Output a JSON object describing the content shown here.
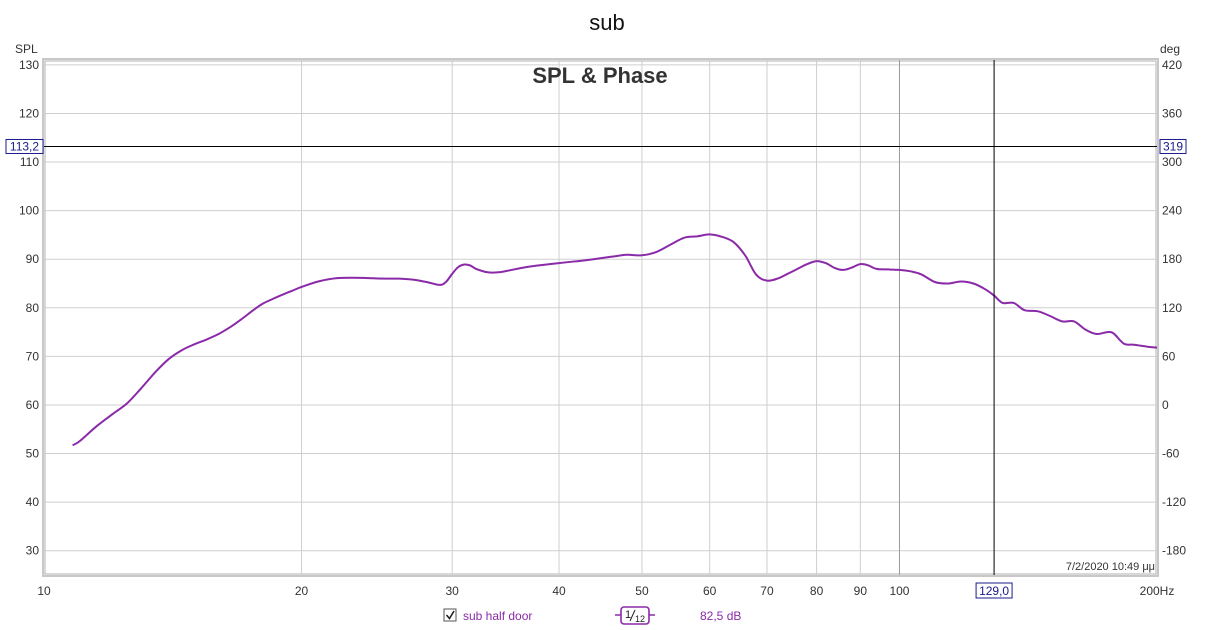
{
  "chart_data": {
    "type": "line",
    "title": "sub",
    "plot_title": "SPL & Phase",
    "ylabel_left": "SPL",
    "ylabel_right": "deg",
    "x_unit": "Hz",
    "x_scale": "log",
    "xlim": [
      10,
      200
    ],
    "ylim_left": [
      25,
      131
    ],
    "ylim_right": [
      -210,
      426
    ],
    "grid": true,
    "x_ticks": [
      10,
      20,
      30,
      40,
      50,
      60,
      70,
      80,
      90,
      100,
      200
    ],
    "x_tick_labels": [
      "10",
      "20",
      "30",
      "40",
      "50",
      "60",
      "70",
      "80",
      "90",
      "100",
      "200Hz"
    ],
    "y_ticks_left": [
      30,
      40,
      50,
      60,
      70,
      80,
      90,
      100,
      110,
      120,
      130
    ],
    "y_tick_labels_left": [
      "30",
      "40",
      "50",
      "60",
      "70",
      "80",
      "90",
      "100",
      "110",
      "120",
      "130"
    ],
    "y_ticks_right": [
      -180,
      -120,
      -60,
      0,
      60,
      120,
      180,
      240,
      300,
      360,
      420
    ],
    "y_tick_labels_right": [
      "-180",
      "-120",
      "-60",
      "0",
      "60",
      "120",
      "180",
      "240",
      "300",
      "360",
      "420"
    ],
    "cursor": {
      "x": 129.0,
      "x_label": "129,0",
      "y_left": 113.2,
      "y_left_label": "113,2",
      "y_right_label": "319"
    },
    "timestamp": "7/2/2020 10:49 μμ",
    "series": [
      {
        "name": "sub half door",
        "color": "#8a2aa8",
        "points": [
          [
            10.8,
            51.7
          ],
          [
            11.0,
            52.5
          ],
          [
            11.5,
            55.5
          ],
          [
            12.0,
            58.0
          ],
          [
            12.5,
            60.3
          ],
          [
            13.0,
            63.5
          ],
          [
            13.5,
            66.8
          ],
          [
            14.0,
            69.5
          ],
          [
            14.5,
            71.3
          ],
          [
            15.0,
            72.5
          ],
          [
            15.5,
            73.5
          ],
          [
            16.0,
            74.6
          ],
          [
            16.5,
            76.0
          ],
          [
            17.0,
            77.6
          ],
          [
            17.5,
            79.3
          ],
          [
            18.0,
            80.8
          ],
          [
            18.5,
            81.8
          ],
          [
            19.0,
            82.7
          ],
          [
            19.5,
            83.5
          ],
          [
            20.0,
            84.3
          ],
          [
            21.0,
            85.5
          ],
          [
            22.0,
            86.1
          ],
          [
            23.0,
            86.2
          ],
          [
            24.0,
            86.1
          ],
          [
            25.0,
            86.0
          ],
          [
            26.0,
            86.0
          ],
          [
            27.0,
            85.8
          ],
          [
            28.0,
            85.3
          ],
          [
            29.0,
            84.7
          ],
          [
            29.5,
            85.3
          ],
          [
            30.0,
            87.0
          ],
          [
            30.5,
            88.4
          ],
          [
            31.0,
            88.9
          ],
          [
            31.5,
            88.7
          ],
          [
            32.0,
            88.0
          ],
          [
            33.0,
            87.3
          ],
          [
            34.0,
            87.3
          ],
          [
            35.0,
            87.7
          ],
          [
            37.0,
            88.5
          ],
          [
            40.0,
            89.2
          ],
          [
            43.0,
            89.8
          ],
          [
            46.0,
            90.5
          ],
          [
            48.0,
            90.9
          ],
          [
            50.0,
            90.8
          ],
          [
            52.0,
            91.5
          ],
          [
            54.0,
            93.0
          ],
          [
            56.0,
            94.4
          ],
          [
            58.0,
            94.7
          ],
          [
            60.0,
            95.1
          ],
          [
            62.0,
            94.6
          ],
          [
            64.0,
            93.5
          ],
          [
            66.0,
            90.8
          ],
          [
            68.0,
            86.8
          ],
          [
            70.0,
            85.6
          ],
          [
            72.0,
            86.0
          ],
          [
            74.0,
            87.0
          ],
          [
            76.0,
            88.0
          ],
          [
            78.0,
            89.0
          ],
          [
            80.0,
            89.6
          ],
          [
            82.0,
            89.2
          ],
          [
            84.0,
            88.2
          ],
          [
            86.0,
            87.8
          ],
          [
            88.0,
            88.3
          ],
          [
            90.0,
            89.0
          ],
          [
            92.0,
            88.7
          ],
          [
            94.0,
            88.0
          ],
          [
            97.0,
            87.9
          ],
          [
            100.0,
            87.8
          ],
          [
            103.0,
            87.5
          ],
          [
            106.0,
            86.9
          ],
          [
            110.0,
            85.3
          ],
          [
            114.0,
            85.0
          ],
          [
            118.0,
            85.4
          ],
          [
            122.0,
            85.0
          ],
          [
            126.0,
            83.8
          ],
          [
            129.0,
            82.5
          ],
          [
            132.0,
            81.0
          ],
          [
            136.0,
            81.0
          ],
          [
            140.0,
            79.5
          ],
          [
            145.0,
            79.3
          ],
          [
            150.0,
            78.3
          ],
          [
            155.0,
            77.2
          ],
          [
            160.0,
            77.2
          ],
          [
            165.0,
            75.5
          ],
          [
            170.0,
            74.6
          ],
          [
            175.0,
            75.0
          ],
          [
            178.0,
            74.7
          ],
          [
            183.0,
            72.6
          ],
          [
            188.0,
            72.4
          ],
          [
            195.0,
            72.0
          ],
          [
            200.0,
            71.8
          ]
        ]
      }
    ]
  },
  "legend": {
    "series_label": "sub half door",
    "smoothing_num": "1",
    "smoothing_den": "12",
    "readout": "82,5 dB"
  }
}
